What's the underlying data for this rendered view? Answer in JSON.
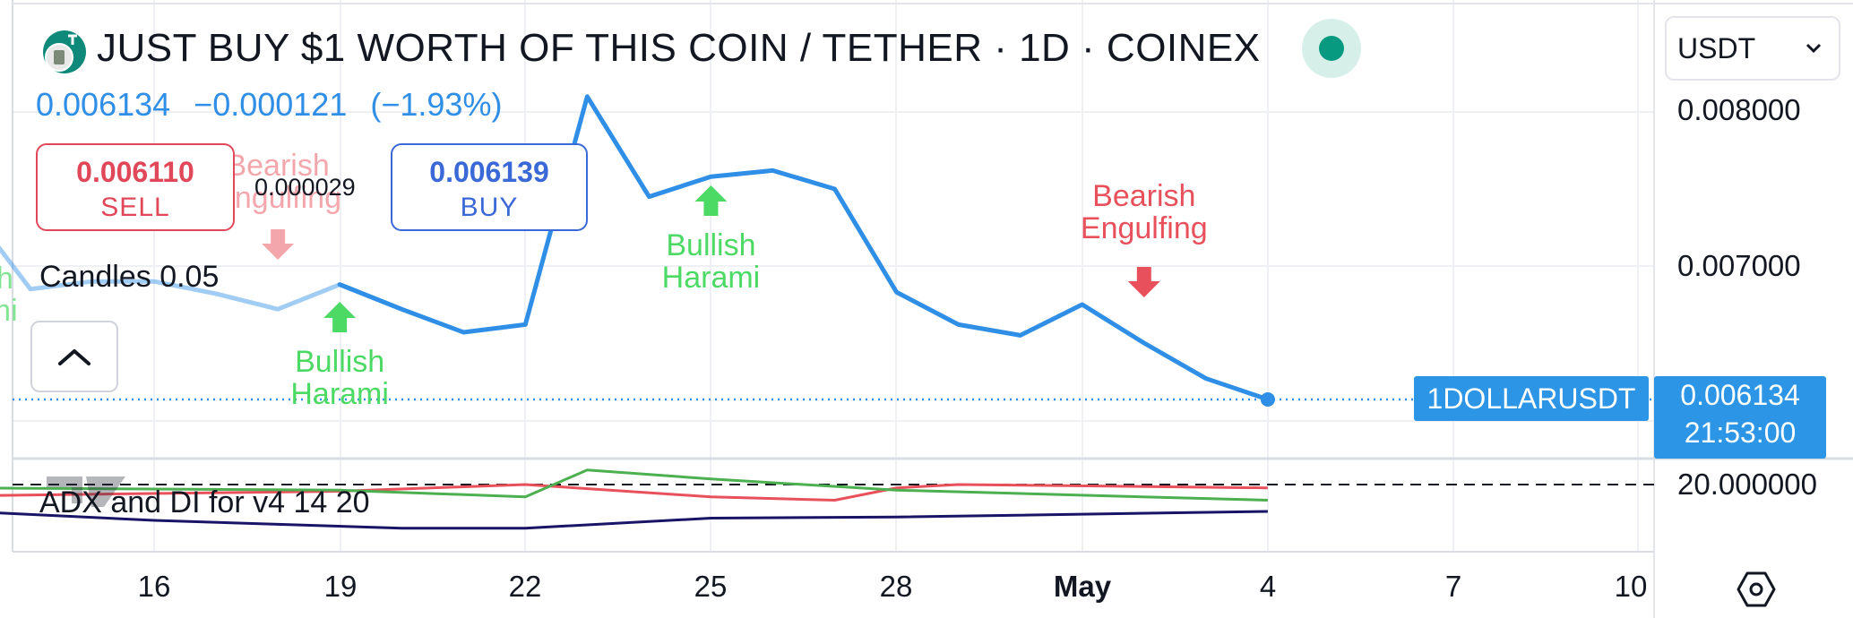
{
  "header": {
    "title": "JUST BUY $1 WORTH OF THIS COIN / TETHER · 1D · COINEX",
    "price": "0.006134",
    "change": "−0.000121",
    "change_pct": "(−1.93%)",
    "status": "market-open-dot",
    "logo_icon": "coin-logo-icon"
  },
  "trade": {
    "sell_price": "0.006110",
    "sell_label": "SELL",
    "buy_price": "0.006139",
    "buy_label": "BUY",
    "spread": "0.000029"
  },
  "indicators": {
    "candles_label": "Candles 0.05",
    "adx_label": "ADX and DI for v4 14 20",
    "collapse_icon": "chevron-up-icon"
  },
  "scale": {
    "currency": "USDT",
    "currency_icon": "chevron-down-icon",
    "settings_icon": "settings-icon"
  },
  "last": {
    "symbol": "1DOLLARUSDT",
    "price": "0.006134",
    "countdown": "21:53:00"
  },
  "colors": {
    "price_line": "#2f8ee6",
    "bullish": "#4cd964",
    "bearish": "#e8505b",
    "adx": "#e8505b",
    "di_plus": "#4caf50",
    "di_minus": "#1a1466",
    "accent": "#2c95e6"
  },
  "chart_data": [
    {
      "type": "line",
      "series": [
        {
          "name": "",
          "x": [
            "2024-04-13",
            "2024-04-14",
            "2024-04-15",
            "2024-04-16",
            "2024-04-17",
            "2024-04-18",
            "2024-04-19",
            "2024-04-20",
            "2024-04-21",
            "2024-04-22",
            "2024-04-23",
            "2024-04-24",
            "2024-04-25",
            "2024-04-26",
            "2024-04-27",
            "2024-04-28",
            "2024-04-29",
            "2024-04-30",
            "2024-05-01",
            "2024-05-02",
            "2024-05-03",
            "2024-05-04"
          ],
          "values": [
            0.00738,
            0.00685,
            0.0069,
            0.0069,
            0.00682,
            0.00672,
            0.00688,
            0.00672,
            0.00657,
            0.00662,
            0.0081,
            0.00745,
            0.00758,
            0.00762,
            0.0075,
            0.00683,
            0.00662,
            0.00655,
            0.00675,
            0.0065,
            0.00627,
            0.006134
          ]
        }
      ],
      "ylim": [
        0.0059,
        0.0084
      ],
      "yticks": [
        "0.008000",
        "0.007000"
      ],
      "xticks": [
        "16",
        "19",
        "22",
        "25",
        "28",
        "May",
        "4",
        "7",
        "10"
      ],
      "grid": true,
      "annotations": [
        {
          "text": "Bullish Harami",
          "date": "2024-04-13",
          "kind": "bullish"
        },
        {
          "text": "Bearish Engulfing",
          "date": "2024-04-18",
          "kind": "bearish"
        },
        {
          "text": "Bullish Harami",
          "date": "2024-04-19",
          "kind": "bullish"
        },
        {
          "text": "Bullish Harami",
          "date": "2024-04-25",
          "kind": "bullish"
        },
        {
          "text": "Bearish Engulfing",
          "date": "2024-05-02",
          "kind": "bearish"
        }
      ]
    },
    {
      "type": "line",
      "series": [
        {
          "name": "",
          "x": [
            "2024-04-13",
            "2024-04-19",
            "2024-04-22",
            "2024-04-25",
            "2024-04-27",
            "2024-04-28",
            "2024-04-29",
            "2024-05-04"
          ],
          "values": [
            19.0,
            19.4,
            20.0,
            18.9,
            18.6,
            19.7,
            20.0,
            19.7
          ]
        },
        {
          "name": "",
          "x": [
            "2024-04-13",
            "2024-04-19",
            "2024-04-22",
            "2024-04-23",
            "2024-04-25",
            "2024-04-28",
            "2024-05-04"
          ],
          "values": [
            19.7,
            19.5,
            18.9,
            21.3,
            20.5,
            19.5,
            18.6
          ]
        },
        {
          "name": "",
          "x": [
            "2024-04-13",
            "2024-04-16",
            "2024-04-20",
            "2024-04-22",
            "2024-04-25",
            "2024-04-28",
            "2024-05-04"
          ],
          "values": [
            17.6,
            16.8,
            16.1,
            16.1,
            17.0,
            17.1,
            17.6
          ]
        }
      ],
      "reference_line": 20,
      "yticks": [
        "20.000000"
      ]
    }
  ]
}
